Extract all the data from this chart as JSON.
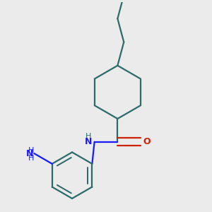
{
  "background_color": "#ebebeb",
  "bond_color": "#2d6b6b",
  "N_color": "#1a1aff",
  "O_color": "#cc2200",
  "line_width": 1.6,
  "fig_size": [
    3.0,
    3.0
  ],
  "dpi": 100,
  "xlim": [
    0.05,
    0.95
  ],
  "ylim": [
    0.05,
    0.95
  ]
}
